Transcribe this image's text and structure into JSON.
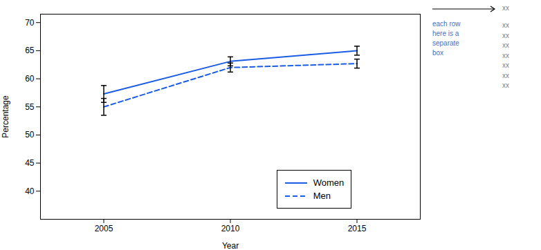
{
  "chart_data": {
    "type": "line",
    "xlabel": "Year",
    "ylabel": "Percentage",
    "x": [
      2005,
      2010,
      2015
    ],
    "series": [
      {
        "name": "Women",
        "color": "#1A5CE5",
        "line_style": "solid",
        "values": [
          57.3,
          63.1,
          65.0
        ],
        "errors": [
          1.5,
          0.8,
          0.8
        ]
      },
      {
        "name": "Men",
        "color": "#1A5CE5",
        "line_style": "dashed",
        "values": [
          55.0,
          62.0,
          62.7
        ],
        "errors": [
          1.5,
          0.8,
          0.8
        ]
      }
    ],
    "xlim": [
      2002.5,
      2017.5
    ],
    "xticks": [
      2005,
      2010,
      2015
    ],
    "ylim": [
      35,
      71.5
    ],
    "yticks": [
      40,
      45,
      50,
      55,
      60,
      65,
      70
    ],
    "grid": false,
    "legend": "lower right",
    "annotations": [
      {
        "text": "xx",
        "color": "#808080"
      },
      {
        "text": "each row\nhere is a\nseparate\nbox",
        "color": "#4472C4"
      },
      {
        "text": "xx",
        "color": "#808080"
      },
      {
        "text": "xx",
        "color": "#808080"
      },
      {
        "text": "xx",
        "color": "#808080"
      },
      {
        "text": "xx",
        "color": "#808080"
      },
      {
        "text": "xx",
        "color": "#808080"
      },
      {
        "text": "xx",
        "color": "#808080"
      },
      {
        "text": "xx",
        "color": "#808080"
      }
    ]
  }
}
